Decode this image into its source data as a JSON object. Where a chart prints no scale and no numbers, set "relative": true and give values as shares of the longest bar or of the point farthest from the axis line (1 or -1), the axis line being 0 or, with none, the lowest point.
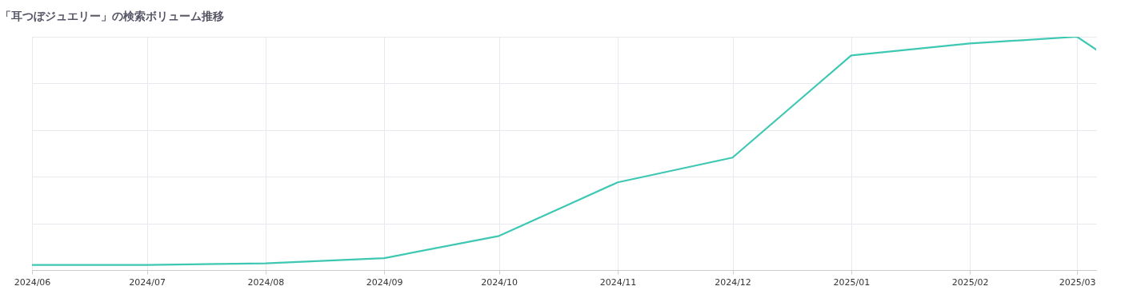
{
  "chart_data": {
    "type": "line",
    "title": "「耳つぼジュエリー」の検索ボリューム推移",
    "relative": true,
    "grid": true,
    "x": [
      "2024-06-01",
      "2024-07-01",
      "2024-08-01",
      "2024-09-01",
      "2024-10-01",
      "2024-11-01",
      "2024-12-01",
      "2025-01-01",
      "2025-02-01",
      "2025-03-01",
      "2025-03-06"
    ],
    "series": [
      {
        "color": "#3ec8b4",
        "values": [
          0.022,
          0.022,
          0.029,
          0.051,
          0.146,
          0.376,
          0.482,
          0.92,
          0.971,
          1,
          0.945
        ]
      }
    ],
    "xlim": [
      "2024-06-01",
      "2025-03-06"
    ],
    "xticks": [
      {
        "value": "2024-06-01",
        "label": "2024/06"
      },
      {
        "value": "2024-07-01",
        "label": "2024/07"
      },
      {
        "value": "2024-08-01",
        "label": "2024/08"
      },
      {
        "value": "2024-09-01",
        "label": "2024/09"
      },
      {
        "value": "2024-10-01",
        "label": "2024/10"
      },
      {
        "value": "2024-11-01",
        "label": "2024/11"
      },
      {
        "value": "2024-12-01",
        "label": "2024/12"
      },
      {
        "value": "2025-01-01",
        "label": "2025/01"
      },
      {
        "value": "2025-02-01",
        "label": "2025/02"
      },
      {
        "value": "2025-03-01",
        "label": "2025/03"
      }
    ],
    "marker": "none",
    "line_style": "solid"
  }
}
